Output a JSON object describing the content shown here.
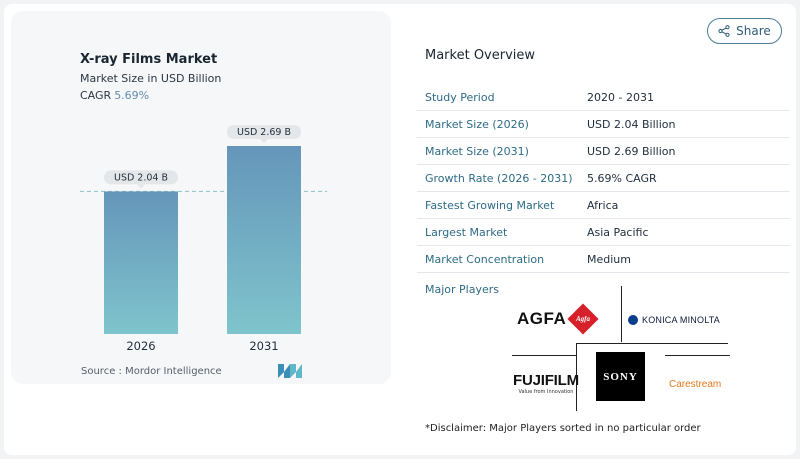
{
  "chart_card": {
    "title": "X-ray Films Market",
    "subtitle": "Market Size in USD Billion",
    "cagr_label": "CAGR",
    "cagr_value": "5.69%",
    "source": "Source : Mordor Intelligence",
    "logo_icon": "mordor-intelligence-logo-icon"
  },
  "chart_data": {
    "type": "bar",
    "categories": [
      "2026",
      "2031"
    ],
    "values": [
      2.04,
      2.69
    ],
    "data_labels": [
      "USD 2.04 B",
      "USD 2.69 B"
    ],
    "title": "X-ray Films Market",
    "subtitle": "Market Size in USD Billion",
    "reference_line": {
      "style": "dashed",
      "value": 2.04
    },
    "grid": false,
    "colors": {
      "bar_top": "#6596ba",
      "bar_bottom": "#7fc4cc",
      "label_bg": "#e4e7ea",
      "ref_line": "#8fbfc7"
    }
  },
  "share_button": {
    "label": "Share",
    "icon": "share-icon"
  },
  "overview": {
    "title": "Market Overview",
    "rows": [
      {
        "label": "Study Period",
        "value": "2020 - 2031"
      },
      {
        "label": "Market Size (2026)",
        "value": "USD 2.04 Billion"
      },
      {
        "label": "Market Size (2031)",
        "value": "USD 2.69 Billion"
      },
      {
        "label": "Growth Rate (2026 - 2031)",
        "value": "5.69% CAGR"
      },
      {
        "label": "Fastest Growing Market",
        "value": "Africa"
      },
      {
        "label": "Largest Market",
        "value": "Asia Pacific"
      },
      {
        "label": "Market Concentration",
        "value": "Medium"
      }
    ]
  },
  "players": {
    "title": "Major Players",
    "agfa": {
      "text": "AGFA",
      "mark": "Agfa"
    },
    "konica": {
      "text": "KONICA MINOLTA"
    },
    "fuji": {
      "text": "FUJIFILM",
      "tagline": "Value from Innovation"
    },
    "sony": {
      "text": "SONY"
    },
    "carestream": {
      "text": "Carestream"
    }
  },
  "disclaimer": "*Disclaimer: Major Players sorted in no particular order",
  "colors": {
    "accent": "#2e6b86",
    "cagr": "#5f8fb0",
    "brand_red": "#d6202a",
    "carestream_orange": "#e07a1f"
  }
}
